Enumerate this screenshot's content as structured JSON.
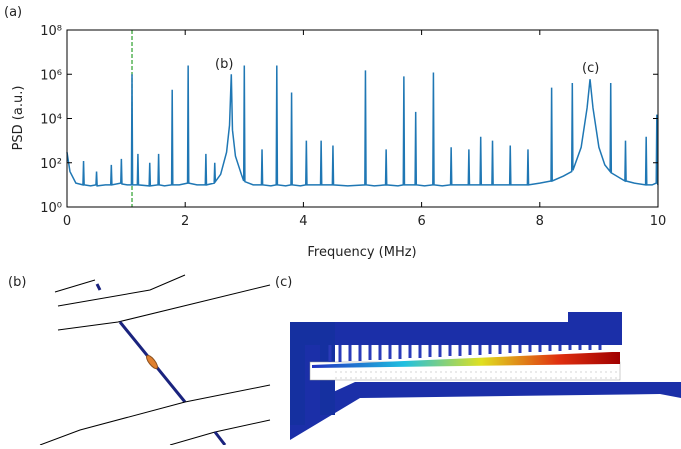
{
  "chart_data": {
    "type": "line",
    "xlabel": "Frequency (MHz)",
    "ylabel": "PSD (a.u.)",
    "log_y": true,
    "color": "#1f77b4",
    "xlim": [
      0,
      10
    ],
    "xticks": [
      0,
      2,
      4,
      6,
      8,
      10
    ],
    "ylim": [
      1,
      100000000
    ],
    "yticks": [
      {
        "value": 1,
        "label": "10⁰"
      },
      {
        "value": 100,
        "label": "10²"
      },
      {
        "value": 10000,
        "label": "10⁴"
      },
      {
        "value": 1000000,
        "label": "10⁶"
      },
      {
        "value": 100000000,
        "label": "10⁸"
      }
    ],
    "vline": {
      "x": 1.1,
      "color": "#2ca02c"
    },
    "panel_labels": [
      "(a)",
      "(b)",
      "(c)"
    ],
    "annotations": [
      "(b)",
      "(c)"
    ],
    "x": [
      0,
      0.05,
      0.15,
      0.27,
      0.28,
      0.29,
      0.4,
      0.49,
      0.5,
      0.51,
      0.65,
      0.74,
      0.75,
      0.76,
      0.91,
      0.92,
      0.93,
      1.02,
      1.09,
      1.1,
      1.11,
      1.19,
      1.2,
      1.21,
      1.39,
      1.4,
      1.41,
      1.54,
      1.55,
      1.56,
      1.65,
      1.77,
      1.78,
      1.79,
      1.9,
      2.04,
      2.05,
      2.06,
      2.2,
      2.34,
      2.35,
      2.36,
      2.49,
      2.5,
      2.51,
      2.6,
      2.7,
      2.75,
      2.78,
      2.8,
      2.85,
      2.95,
      2.99,
      3.0,
      3.01,
      3.15,
      3.29,
      3.3,
      3.31,
      3.45,
      3.54,
      3.55,
      3.56,
      3.7,
      3.79,
      3.8,
      3.81,
      3.95,
      4.04,
      4.05,
      4.06,
      4.29,
      4.3,
      4.31,
      4.49,
      4.5,
      4.51,
      4.75,
      5.04,
      5.05,
      5.06,
      5.2,
      5.39,
      5.4,
      5.41,
      5.6,
      5.69,
      5.7,
      5.71,
      5.89,
      5.9,
      5.91,
      6.05,
      6.19,
      6.2,
      6.21,
      6.35,
      6.49,
      6.5,
      6.51,
      6.79,
      6.8,
      6.81,
      6.99,
      7.0,
      7.01,
      7.19,
      7.2,
      7.21,
      7.49,
      7.5,
      7.51,
      7.79,
      7.8,
      7.81,
      8.0,
      8.19,
      8.2,
      8.21,
      8.4,
      8.54,
      8.55,
      8.56,
      8.7,
      8.8,
      8.85,
      8.9,
      9.0,
      9.1,
      9.19,
      9.2,
      9.21,
      9.44,
      9.45,
      9.46,
      9.6,
      9.79,
      9.8,
      9.81,
      9.9,
      9.97,
      9.98,
      9.99,
      10
    ],
    "values": [
      300,
      40,
      12,
      10,
      120,
      10,
      9,
      10,
      40,
      9,
      10,
      10,
      80,
      10,
      12,
      150,
      11,
      10,
      10,
      1000000,
      10,
      10,
      250,
      10,
      9,
      100,
      9,
      10,
      250,
      10,
      9,
      10,
      200000,
      10,
      10,
      12,
      2500000,
      12,
      10,
      10,
      250,
      10,
      12,
      100,
      14,
      30,
      300,
      5000,
      1000000,
      3000,
      200,
      30,
      15,
      2500000,
      14,
      10,
      10,
      400,
      10,
      9,
      10,
      2500000,
      10,
      9,
      10,
      150000,
      10,
      9,
      10,
      1000,
      10,
      10,
      1000,
      10,
      10,
      600,
      10,
      9,
      10,
      1500000,
      10,
      9,
      10,
      400,
      10,
      9,
      10,
      800000,
      10,
      10,
      20000,
      10,
      9,
      10,
      1200000,
      10,
      9,
      10,
      500,
      10,
      10,
      400,
      10,
      10,
      1500,
      10,
      10,
      1000,
      10,
      10,
      600,
      10,
      10,
      400,
      10,
      12,
      15,
      250000,
      15,
      25,
      40,
      400000,
      45,
      500,
      30000,
      600000,
      30000,
      500,
      80,
      40,
      400000,
      35,
      15,
      1000,
      15,
      12,
      10,
      1500,
      10,
      10,
      12,
      15000,
      12,
      10
    ]
  }
}
